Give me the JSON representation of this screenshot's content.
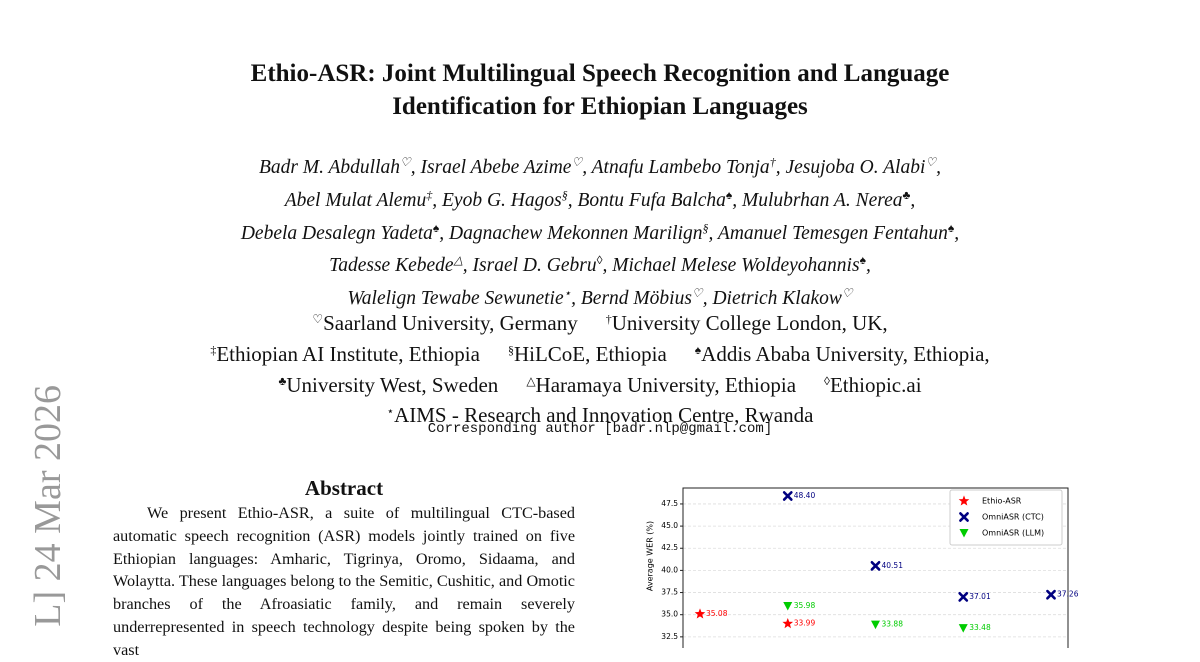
{
  "paper": {
    "side_stamp": "L] 24 Mar 2026",
    "title": [
      "Ethio-ASR: Joint Multilingual Speech Recognition and Language",
      "Identification for Ethiopian Languages"
    ],
    "authors": [
      [
        {
          "name": "Badr M. Abdullah",
          "mark": "♡",
          "trail": ","
        },
        {
          "name": "Israel Abebe Azime",
          "mark": "♡",
          "trail": ","
        },
        {
          "name": "Atnafu Lambebo Tonja",
          "mark": "†",
          "trail": ","
        },
        {
          "name": "Jesujoba O. Alabi",
          "mark": "♡",
          "trail": ","
        }
      ],
      [
        {
          "name": "Abel Mulat Alemu",
          "mark": "‡",
          "trail": ","
        },
        {
          "name": "Eyob G. Hagos",
          "mark": "§",
          "trail": ","
        },
        {
          "name": "Bontu Fufa Balcha",
          "mark": "♠",
          "trail": ","
        },
        {
          "name": "Mulubrhan A. Nerea",
          "mark": "♣",
          "trail": ","
        }
      ],
      [
        {
          "name": "Debela Desalegn Yadeta",
          "mark": "♠",
          "trail": ","
        },
        {
          "name": "Dagnachew Mekonnen Marilign",
          "mark": "§",
          "trail": ","
        },
        {
          "name": "Amanuel Temesgen Fentahun",
          "mark": "♠",
          "trail": ","
        }
      ],
      [
        {
          "name": "Tadesse Kebede",
          "mark": "△",
          "trail": ","
        },
        {
          "name": "Israel D. Gebru",
          "mark": "◊",
          "trail": ","
        },
        {
          "name": "Michael Melese Woldeyohannis",
          "mark": "♠",
          "trail": ","
        }
      ],
      [
        {
          "name": "Walelign Tewabe Sewunetie",
          "mark": "⋆",
          "trail": ","
        },
        {
          "name": "Bernd Möbius",
          "mark": "♡",
          "trail": ","
        },
        {
          "name": "Dietrich Klakow",
          "mark": "♡"
        }
      ]
    ],
    "affiliations": [
      [
        {
          "mark": "♡",
          "name": "Saarland University, Germany"
        },
        {
          "mark": "†",
          "name": "University College London, UK,"
        }
      ],
      [
        {
          "mark": "‡",
          "name": "Ethiopian AI Institute, Ethiopia"
        },
        {
          "mark": "§",
          "name": "HiLCoE, Ethiopia"
        },
        {
          "mark": "♠",
          "name": "Addis Ababa University, Ethiopia,"
        }
      ],
      [
        {
          "mark": "♣",
          "name": "University West, Sweden"
        },
        {
          "mark": "△",
          "name": "Haramaya University, Ethiopia"
        },
        {
          "mark": "◊",
          "name": "Ethiopic.ai"
        }
      ],
      [
        {
          "mark": "⋆",
          "name": "AIMS - Research and Innovation Centre, Rwanda"
        }
      ]
    ],
    "corresponding": "Corresponding author [badr.nlp@gmail.com]",
    "abstract": {
      "heading": "Abstract",
      "text": "We present Ethio-ASR, a suite of multilingual CTC-based automatic speech recognition (ASR) models jointly trained on five Ethiopian languages: Amharic, Tigrinya, Oromo, Sidaama, and Wolaytta. These languages belong to the Semitic, Cushitic, and Omotic branches of the Afroasiatic family, and remain severely underrepresented in speech technology despite being spoken by the vast"
    }
  },
  "chart_data": {
    "type": "scatter",
    "y_label": "Average WER (%)",
    "categories": [
      null,
      null,
      null,
      null,
      null
    ],
    "ylim": [
      30,
      49.3
    ],
    "yticks": [
      32.5,
      {
        "value": 35,
        "label": "35.0"
      },
      37.5,
      {
        "value": 40,
        "label": "40.0"
      },
      42.5,
      {
        "value": 45,
        "label": "45.0"
      },
      47.5
    ],
    "grid": true,
    "legend": "upper-right",
    "series": [
      {
        "name": "Ethio-ASR",
        "color": "#ff0000",
        "marker": "star",
        "values": [
          35.08,
          33.99,
          null,
          null,
          null
        ],
        "value_labels": [
          "35.08",
          "33.99",
          null,
          null,
          null
        ]
      },
      {
        "name": "OmniASR (CTC)",
        "color": "#000080",
        "marker": "x",
        "values": [
          null,
          48.4,
          40.51,
          37.01,
          37.26
        ],
        "value_labels": [
          null,
          "48.40",
          "40.51",
          "37.01",
          "37.26"
        ]
      },
      {
        "name": "OmniASR (LLM)",
        "color": "#00cc00",
        "marker": "triangle",
        "values": [
          null,
          35.98,
          33.88,
          33.48,
          null
        ],
        "value_labels": [
          null,
          "35.98",
          "33.88",
          "33.48",
          null
        ]
      }
    ]
  }
}
